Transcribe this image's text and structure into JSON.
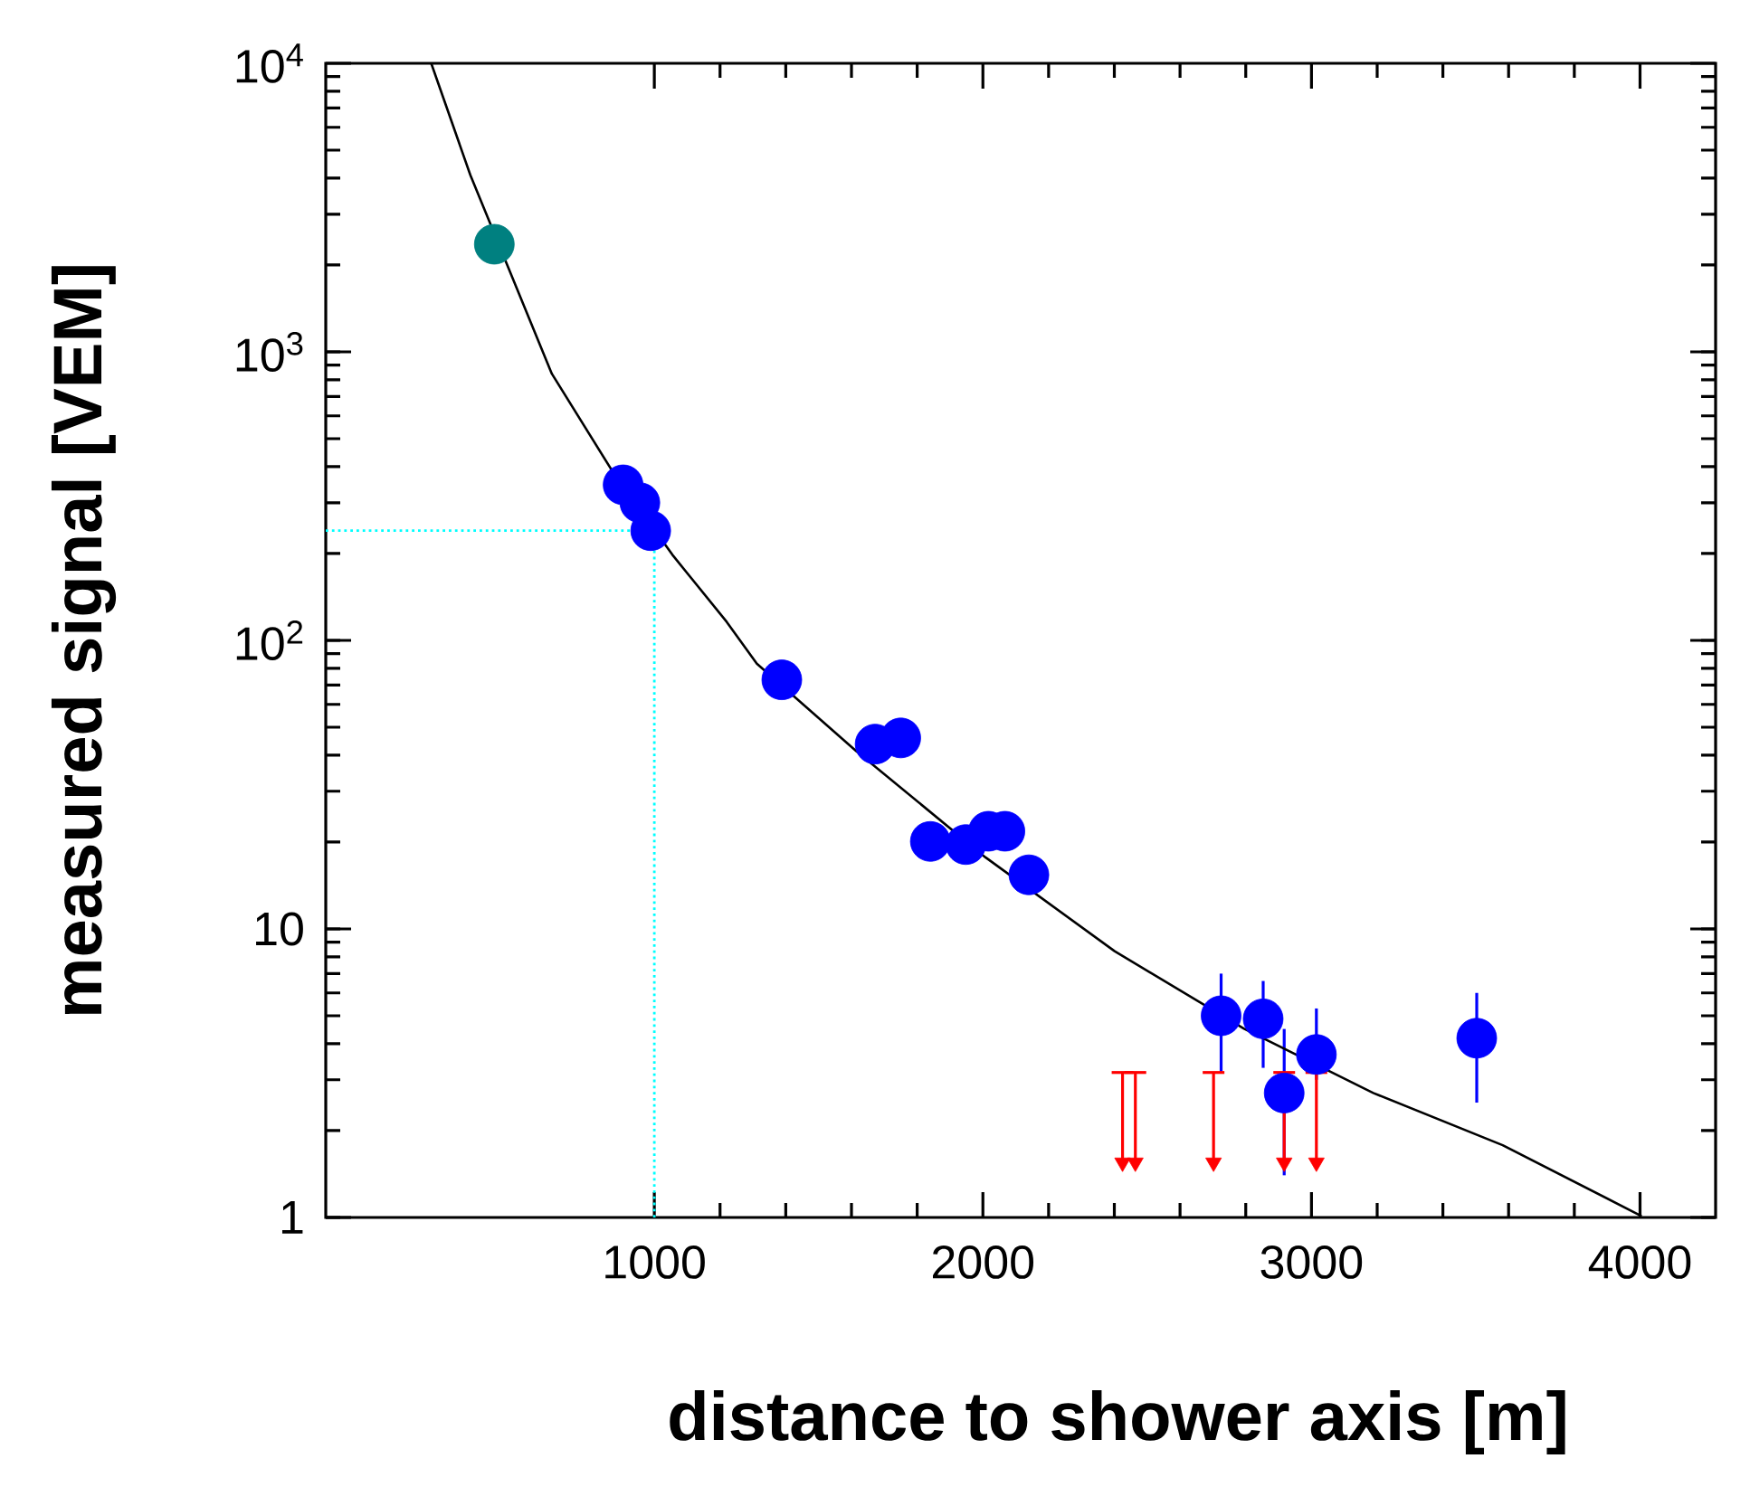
{
  "chart_data": {
    "type": "scatter",
    "xlabel": "distance to shower axis [m]",
    "ylabel": "measured signal [VEM]",
    "log": "y",
    "xlim": [
      0,
      4230
    ],
    "ylim": [
      1,
      10000
    ],
    "xticks": [
      1000,
      2000,
      3000,
      4000
    ],
    "yticks": [
      1,
      10,
      {
        "value": 100,
        "label": "10$^{2}$"
      },
      {
        "value": 1000,
        "label": "10$^{3}$"
      },
      {
        "value": 10000,
        "label": "10$^{4}$"
      }
    ],
    "series": [
      {
        "type": "line",
        "color": "#000000",
        "x": [
          321,
          440,
          688,
          871,
          1055,
          1220,
          1312,
          1614,
          2008,
          2401,
          2795,
          3188,
          3582,
          4005
        ],
        "values": [
          10000,
          4100,
          840,
          388,
          198,
          116,
          83,
          41.4,
          17.7,
          8.37,
          4.51,
          2.7,
          1.78,
          1.01
        ]
      },
      {
        "type": "scatter",
        "marker": "circle",
        "color": "#008080",
        "x": [
          513
        ],
        "values": [
          2360
        ]
      },
      {
        "type": "scatter",
        "marker": "circle",
        "color": "#0000ff",
        "x": [
          905,
          956,
          989,
          1388,
          1672,
          1750,
          1840,
          1948,
          2017,
          2067,
          2140,
          2725,
          2853,
          2917,
          3015,
          3503
        ],
        "values": [
          346,
          300,
          240,
          73,
          43.7,
          45.9,
          20.1,
          19.6,
          21.8,
          21.8,
          15.4,
          5.0,
          4.88,
          2.7,
          3.67,
          4.18
        ],
        "errors": [
          null,
          null,
          null,
          null,
          null,
          null,
          null,
          null,
          null,
          null,
          null,
          [
            3.2,
            7.0
          ],
          [
            3.3,
            6.6
          ],
          [
            1.4,
            4.5
          ],
          [
            3.0,
            5.3
          ],
          [
            2.5,
            6.0
          ]
        ]
      },
      {
        "type": "scatter",
        "marker": "triangle",
        "color": "#ff0000",
        "x": [
          2425,
          2464,
          2702,
          2917,
          3015
        ],
        "values": [
          1.55,
          1.55,
          1.55,
          1.55,
          1.55
        ],
        "errors": [
          [
            1.55,
            3.18
          ],
          [
            1.55,
            3.18
          ],
          [
            1.55,
            3.18
          ],
          [
            1.55,
            3.18
          ],
          [
            1.55,
            3.18
          ]
        ]
      }
    ],
    "ref_lines": [
      {
        "axis": "x",
        "value": 1000,
        "color": "#00ffff",
        "line_style": "dotted"
      },
      {
        "axis": "y",
        "value": 240,
        "color": "#00ffff",
        "line_style": "dotted"
      }
    ]
  }
}
